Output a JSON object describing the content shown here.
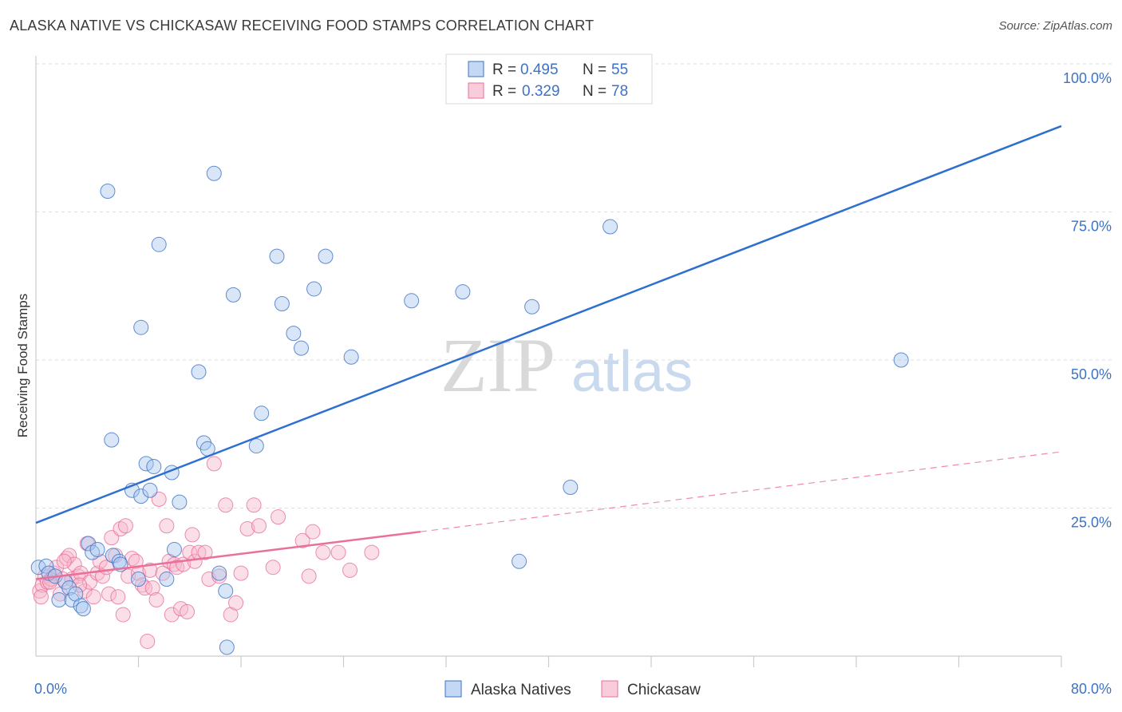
{
  "header": {
    "title": "ALASKA NATIVE VS CHICKASAW RECEIVING FOOD STAMPS CORRELATION CHART",
    "source": "Source: ZipAtlas.com"
  },
  "watermark": {
    "zip": "ZIP",
    "atlas": "atlas"
  },
  "colors": {
    "blue": "#3d72c4",
    "blue_fill": "#a9c8f0",
    "blue_line": "#2e6fd0",
    "pink": "#e8709a",
    "pink_fill": "#f6b7cc",
    "grid": "#dddddd"
  },
  "legend_top": [
    {
      "r_label": "R =",
      "r_value": "0.495",
      "n_label": "N =",
      "n_value": "55",
      "series": "blue"
    },
    {
      "r_label": "R =",
      "r_value": "0.329",
      "n_label": "N =",
      "n_value": "78",
      "series": "pink"
    }
  ],
  "legend_bottom": [
    {
      "label": "Alaska Natives",
      "series": "blue"
    },
    {
      "label": "Chickasaw",
      "series": "pink"
    }
  ],
  "chart_data": {
    "type": "scatter",
    "title": "ALASKA NATIVE VS CHICKASAW RECEIVING FOOD STAMPS CORRELATION CHART",
    "xlabel": "",
    "ylabel": "Receiving Food Stamps",
    "xlim": [
      0,
      80
    ],
    "ylim": [
      0,
      100
    ],
    "x_tick_labels": [
      "0.0%",
      "80.0%"
    ],
    "y_ticks": [
      25,
      50,
      75,
      100
    ],
    "y_tick_labels": [
      "25.0%",
      "50.0%",
      "75.0%",
      "100.0%"
    ],
    "grid": true,
    "legend_position": "top-center",
    "series": [
      {
        "name": "Alaska Natives",
        "color": "#3d72c4",
        "r": 0.495,
        "n": 55,
        "trend": {
          "x": [
            0,
            80
          ],
          "y": [
            22.5,
            89.5
          ],
          "style": "solid"
        },
        "points": [
          [
            0.2,
            15.0
          ],
          [
            0.8,
            15.2
          ],
          [
            1.0,
            14.0
          ],
          [
            1.5,
            13.5
          ],
          [
            1.8,
            9.5
          ],
          [
            2.3,
            12.5
          ],
          [
            2.6,
            11.5
          ],
          [
            2.8,
            9.5
          ],
          [
            3.1,
            10.5
          ],
          [
            3.5,
            8.5
          ],
          [
            3.7,
            8.0
          ],
          [
            4.1,
            19.0
          ],
          [
            4.4,
            17.5
          ],
          [
            4.8,
            18.0
          ],
          [
            5.6,
            78.5
          ],
          [
            5.9,
            36.5
          ],
          [
            6.0,
            17.0
          ],
          [
            6.5,
            16.0
          ],
          [
            7.5,
            28.0
          ],
          [
            8.0,
            13.0
          ],
          [
            8.2,
            27.0
          ],
          [
            8.2,
            55.5
          ],
          [
            8.6,
            32.5
          ],
          [
            8.9,
            28.0
          ],
          [
            9.2,
            32.0
          ],
          [
            9.6,
            69.5
          ],
          [
            10.6,
            31.0
          ],
          [
            10.8,
            18.0
          ],
          [
            11.2,
            26.0
          ],
          [
            12.7,
            48.0
          ],
          [
            13.1,
            36.0
          ],
          [
            13.4,
            35.0
          ],
          [
            13.9,
            81.5
          ],
          [
            14.3,
            14.0
          ],
          [
            14.8,
            11.0
          ],
          [
            14.9,
            1.5
          ],
          [
            15.4,
            61.0
          ],
          [
            17.2,
            35.5
          ],
          [
            17.6,
            41.0
          ],
          [
            18.8,
            67.5
          ],
          [
            19.2,
            59.5
          ],
          [
            20.1,
            54.5
          ],
          [
            20.7,
            52.0
          ],
          [
            21.7,
            62.0
          ],
          [
            22.6,
            67.5
          ],
          [
            24.6,
            50.5
          ],
          [
            29.3,
            60.0
          ],
          [
            33.3,
            61.5
          ],
          [
            37.7,
            16.0
          ],
          [
            38.7,
            59.0
          ],
          [
            41.7,
            28.5
          ],
          [
            44.8,
            72.5
          ],
          [
            67.5,
            50.0
          ],
          [
            6.6,
            15.5
          ],
          [
            10.2,
            13.0
          ]
        ]
      },
      {
        "name": "Chickasaw",
        "color": "#e8709a",
        "r": 0.329,
        "n": 78,
        "trend": {
          "x": [
            0,
            30
          ],
          "y": [
            13.0,
            21.0
          ],
          "style": "solid",
          "extended_x": [
            30,
            80
          ],
          "extended_y": [
            21.0,
            34.5
          ],
          "extended_style": "dashed"
        },
        "points": [
          [
            0.3,
            11.0
          ],
          [
            0.5,
            12.0
          ],
          [
            0.7,
            13.5
          ],
          [
            0.9,
            12.5
          ],
          [
            1.2,
            13.0
          ],
          [
            1.4,
            14.0
          ],
          [
            1.6,
            15.0
          ],
          [
            1.9,
            10.5
          ],
          [
            2.1,
            13.0
          ],
          [
            2.4,
            16.5
          ],
          [
            2.6,
            17.0
          ],
          [
            2.8,
            13.0
          ],
          [
            3.0,
            15.5
          ],
          [
            3.3,
            13.5
          ],
          [
            3.5,
            14.0
          ],
          [
            3.8,
            11.0
          ],
          [
            4.0,
            19.0
          ],
          [
            4.2,
            12.5
          ],
          [
            4.5,
            10.0
          ],
          [
            4.8,
            14.0
          ],
          [
            5.0,
            16.0
          ],
          [
            5.2,
            13.5
          ],
          [
            5.5,
            15.0
          ],
          [
            5.7,
            10.5
          ],
          [
            5.9,
            20.0
          ],
          [
            6.2,
            17.0
          ],
          [
            6.4,
            10.0
          ],
          [
            6.6,
            21.5
          ],
          [
            6.8,
            7.0
          ],
          [
            7.0,
            22.0
          ],
          [
            7.2,
            13.5
          ],
          [
            7.5,
            16.5
          ],
          [
            7.8,
            16.0
          ],
          [
            8.0,
            14.0
          ],
          [
            8.3,
            12.0
          ],
          [
            8.5,
            11.5
          ],
          [
            8.7,
            2.5
          ],
          [
            8.9,
            14.5
          ],
          [
            9.1,
            11.5
          ],
          [
            9.4,
            9.5
          ],
          [
            9.6,
            26.5
          ],
          [
            9.9,
            14.0
          ],
          [
            10.2,
            22.0
          ],
          [
            10.4,
            16.0
          ],
          [
            10.6,
            7.0
          ],
          [
            10.8,
            15.5
          ],
          [
            11.0,
            15.0
          ],
          [
            11.3,
            8.0
          ],
          [
            11.5,
            15.5
          ],
          [
            11.8,
            7.5
          ],
          [
            12.0,
            17.5
          ],
          [
            12.2,
            20.5
          ],
          [
            12.4,
            16.0
          ],
          [
            12.7,
            17.5
          ],
          [
            13.2,
            17.5
          ],
          [
            13.5,
            13.0
          ],
          [
            13.9,
            32.5
          ],
          [
            14.3,
            13.5
          ],
          [
            14.8,
            25.5
          ],
          [
            15.2,
            7.0
          ],
          [
            15.6,
            9.0
          ],
          [
            16.0,
            14.0
          ],
          [
            16.5,
            21.5
          ],
          [
            17.0,
            25.5
          ],
          [
            17.4,
            22.0
          ],
          [
            18.5,
            15.0
          ],
          [
            18.9,
            23.5
          ],
          [
            20.8,
            19.5
          ],
          [
            21.3,
            13.5
          ],
          [
            21.6,
            21.0
          ],
          [
            22.4,
            17.5
          ],
          [
            23.6,
            17.5
          ],
          [
            24.5,
            14.5
          ],
          [
            26.2,
            17.5
          ],
          [
            0.4,
            10.0
          ],
          [
            1.1,
            12.5
          ],
          [
            2.2,
            16.0
          ],
          [
            3.4,
            12.0
          ]
        ]
      }
    ]
  }
}
